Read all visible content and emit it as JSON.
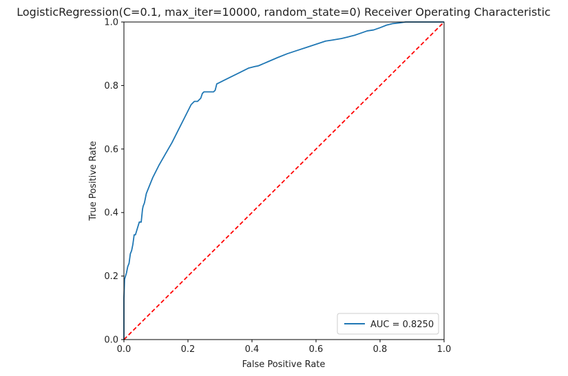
{
  "chart_data": {
    "type": "line",
    "title": "LogisticRegression(C=0.1, max_iter=10000, random_state=0) Receiver Operating Characteristic",
    "xlabel": "False Positive Rate",
    "ylabel": "True Positive Rate",
    "xlim": [
      0,
      1
    ],
    "ylim": [
      0,
      1
    ],
    "xticks": [
      "0.0",
      "0.2",
      "0.4",
      "0.6",
      "0.8",
      "1.0"
    ],
    "yticks": [
      "0.0",
      "0.2",
      "0.4",
      "0.6",
      "0.8",
      "1.0"
    ],
    "grid": false,
    "legend_position": "lower-right",
    "series": [
      {
        "name": "AUC = 0.8250",
        "color": "#1f77b4",
        "x": [
          0.0,
          0.0,
          0.002,
          0.005,
          0.008,
          0.012,
          0.016,
          0.02,
          0.024,
          0.028,
          0.032,
          0.036,
          0.042,
          0.048,
          0.054,
          0.058,
          0.06,
          0.064,
          0.07,
          0.078,
          0.09,
          0.11,
          0.13,
          0.15,
          0.17,
          0.19,
          0.21,
          0.22,
          0.23,
          0.24,
          0.245,
          0.25,
          0.26,
          0.27,
          0.28,
          0.285,
          0.29,
          0.3,
          0.31,
          0.33,
          0.36,
          0.39,
          0.41,
          0.42,
          0.45,
          0.48,
          0.51,
          0.54,
          0.57,
          0.6,
          0.63,
          0.65,
          0.68,
          0.7,
          0.72,
          0.74,
          0.76,
          0.78,
          0.8,
          0.82,
          0.84,
          0.86,
          0.88,
          0.9,
          0.92,
          0.95,
          0.98,
          1.0
        ],
        "y": [
          0.0,
          0.13,
          0.19,
          0.2,
          0.21,
          0.23,
          0.24,
          0.27,
          0.28,
          0.3,
          0.33,
          0.33,
          0.35,
          0.37,
          0.37,
          0.41,
          0.42,
          0.43,
          0.46,
          0.48,
          0.51,
          0.55,
          0.585,
          0.62,
          0.66,
          0.7,
          0.74,
          0.75,
          0.75,
          0.76,
          0.775,
          0.78,
          0.78,
          0.78,
          0.78,
          0.785,
          0.805,
          0.81,
          0.815,
          0.825,
          0.84,
          0.855,
          0.86,
          0.862,
          0.875,
          0.888,
          0.9,
          0.91,
          0.92,
          0.93,
          0.94,
          0.943,
          0.948,
          0.953,
          0.958,
          0.965,
          0.972,
          0.975,
          0.982,
          0.99,
          0.995,
          0.997,
          1.0,
          1.0,
          1.0,
          1.0,
          1.0,
          1.0
        ]
      },
      {
        "name": "",
        "color": "#ff0000",
        "dashed": true,
        "x": [
          0,
          1
        ],
        "y": [
          0,
          1
        ]
      }
    ]
  }
}
